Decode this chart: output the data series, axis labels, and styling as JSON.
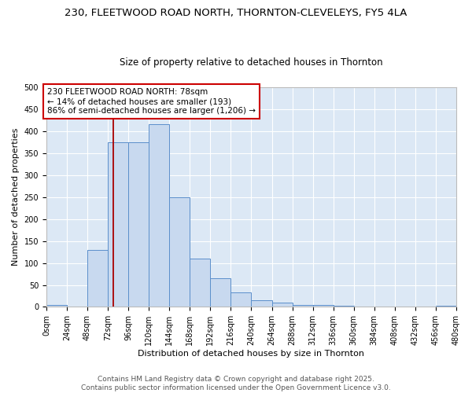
{
  "title_line1": "230, FLEETWOOD ROAD NORTH, THORNTON-CLEVELEYS, FY5 4LA",
  "title_line2": "Size of property relative to detached houses in Thornton",
  "xlabel": "Distribution of detached houses by size in Thornton",
  "ylabel": "Number of detached properties",
  "bar_color": "#c8d9ef",
  "bar_edge_color": "#5b8fcb",
  "background_color": "#dce8f5",
  "grid_color": "#ffffff",
  "bin_edges": [
    0,
    24,
    48,
    72,
    96,
    120,
    144,
    168,
    192,
    216,
    240,
    264,
    288,
    312,
    336,
    360,
    384,
    408,
    432,
    456,
    480
  ],
  "bar_heights": [
    4,
    0,
    130,
    375,
    375,
    415,
    250,
    110,
    65,
    33,
    15,
    10,
    5,
    5,
    2,
    1,
    0,
    0,
    0,
    3
  ],
  "ylim": [
    0,
    500
  ],
  "xlim": [
    0,
    480
  ],
  "yticks": [
    0,
    50,
    100,
    150,
    200,
    250,
    300,
    350,
    400,
    450,
    500
  ],
  "xtick_labels": [
    "0sqm",
    "24sqm",
    "48sqm",
    "72sqm",
    "96sqm",
    "120sqm",
    "144sqm",
    "168sqm",
    "192sqm",
    "216sqm",
    "240sqm",
    "264sqm",
    "288sqm",
    "312sqm",
    "336sqm",
    "360sqm",
    "384sqm",
    "408sqm",
    "432sqm",
    "456sqm",
    "480sqm"
  ],
  "property_size": 78,
  "vline_color": "#aa0000",
  "annotation_text": "230 FLEETWOOD ROAD NORTH: 78sqm\n← 14% of detached houses are smaller (193)\n86% of semi-detached houses are larger (1,206) →",
  "annotation_box_color": "#ffffff",
  "annotation_border_color": "#cc0000",
  "footer_line1": "Contains HM Land Registry data © Crown copyright and database right 2025.",
  "footer_line2": "Contains public sector information licensed under the Open Government Licence v3.0.",
  "title_fontsize": 9.5,
  "subtitle_fontsize": 8.5,
  "axis_label_fontsize": 8,
  "tick_fontsize": 7,
  "annotation_fontsize": 7.5,
  "footer_fontsize": 6.5
}
